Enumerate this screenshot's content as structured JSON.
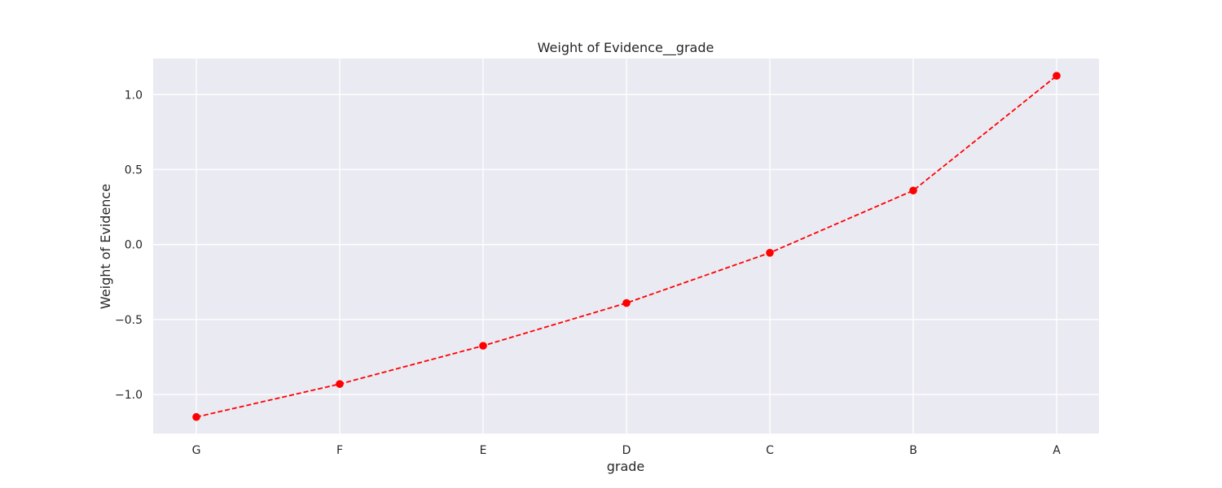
{
  "chart_data": {
    "type": "line",
    "title": "Weight of Evidence__grade",
    "xlabel": "grade",
    "ylabel": "Weight of Evidence",
    "categories": [
      "G",
      "F",
      "E",
      "D",
      "C",
      "B",
      "A"
    ],
    "values": [
      -1.15,
      -0.93,
      -0.675,
      -0.39,
      -0.055,
      0.36,
      1.125
    ],
    "ylim": [
      -1.26,
      1.24
    ],
    "yticks": [
      -1.0,
      -0.5,
      0.0,
      0.5,
      1.0
    ],
    "ytick_labels": [
      "−1.0",
      "−0.5",
      "0.0",
      "0.5",
      "1.0"
    ],
    "grid": true,
    "style": {
      "line_color": "#ff0000",
      "line_style": "dashed",
      "marker": "circle",
      "background": "#eaeaf2"
    }
  }
}
